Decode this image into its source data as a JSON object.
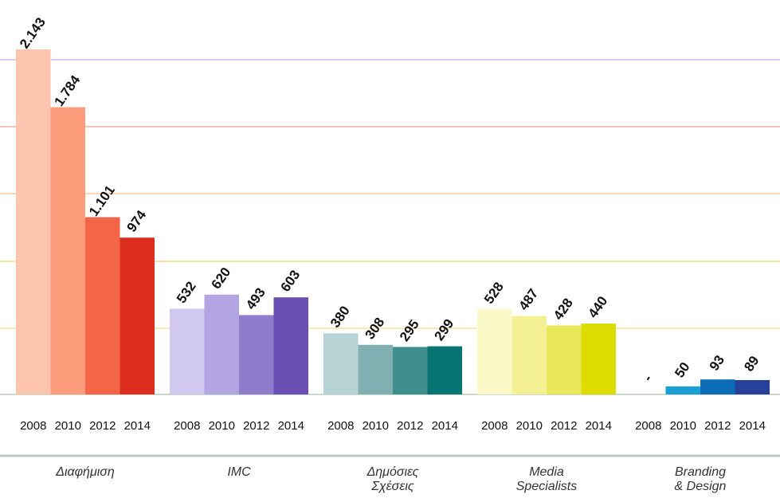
{
  "chart_data": {
    "type": "bar",
    "categories": [
      "2008",
      "2010",
      "2012",
      "2014"
    ],
    "ylim": [
      0,
      2450
    ],
    "groups": [
      {
        "name": [
          "Διαφήμιση"
        ],
        "values": [
          2143,
          1784,
          1101,
          974
        ],
        "value_labels": [
          "2.143",
          "1.784",
          "1.101",
          "974"
        ],
        "colors": [
          "#fdc5ad",
          "#fc9c7b",
          "#f46446",
          "#dc2e1f"
        ]
      },
      {
        "name": [
          "IMC"
        ],
        "values": [
          532,
          620,
          493,
          603
        ],
        "colors": [
          "#d0c8ef",
          "#b3a5e3",
          "#8f7ccb",
          "#6a50b3"
        ]
      },
      {
        "name": [
          "Δημόσιες",
          "Σχέσεις"
        ],
        "values": [
          380,
          308,
          295,
          299
        ],
        "colors": [
          "#b8d3d5",
          "#82b0b2",
          "#3f8f8f",
          "#067573"
        ]
      },
      {
        "name": [
          "Media",
          "Specialists"
        ],
        "values": [
          528,
          487,
          428,
          440
        ],
        "colors": [
          "#fbf9c8",
          "#f4f194",
          "#e8e85a",
          "#dcdc00"
        ]
      },
      {
        "name": [
          "Branding",
          "& Design"
        ],
        "values": [
          null,
          50,
          93,
          89
        ],
        "value_labels": [
          "-",
          "50",
          "93",
          "89"
        ],
        "colors": [
          "#6fc3e6",
          "#1aa0d6",
          "#0c6db8",
          "#27409a"
        ]
      }
    ]
  }
}
